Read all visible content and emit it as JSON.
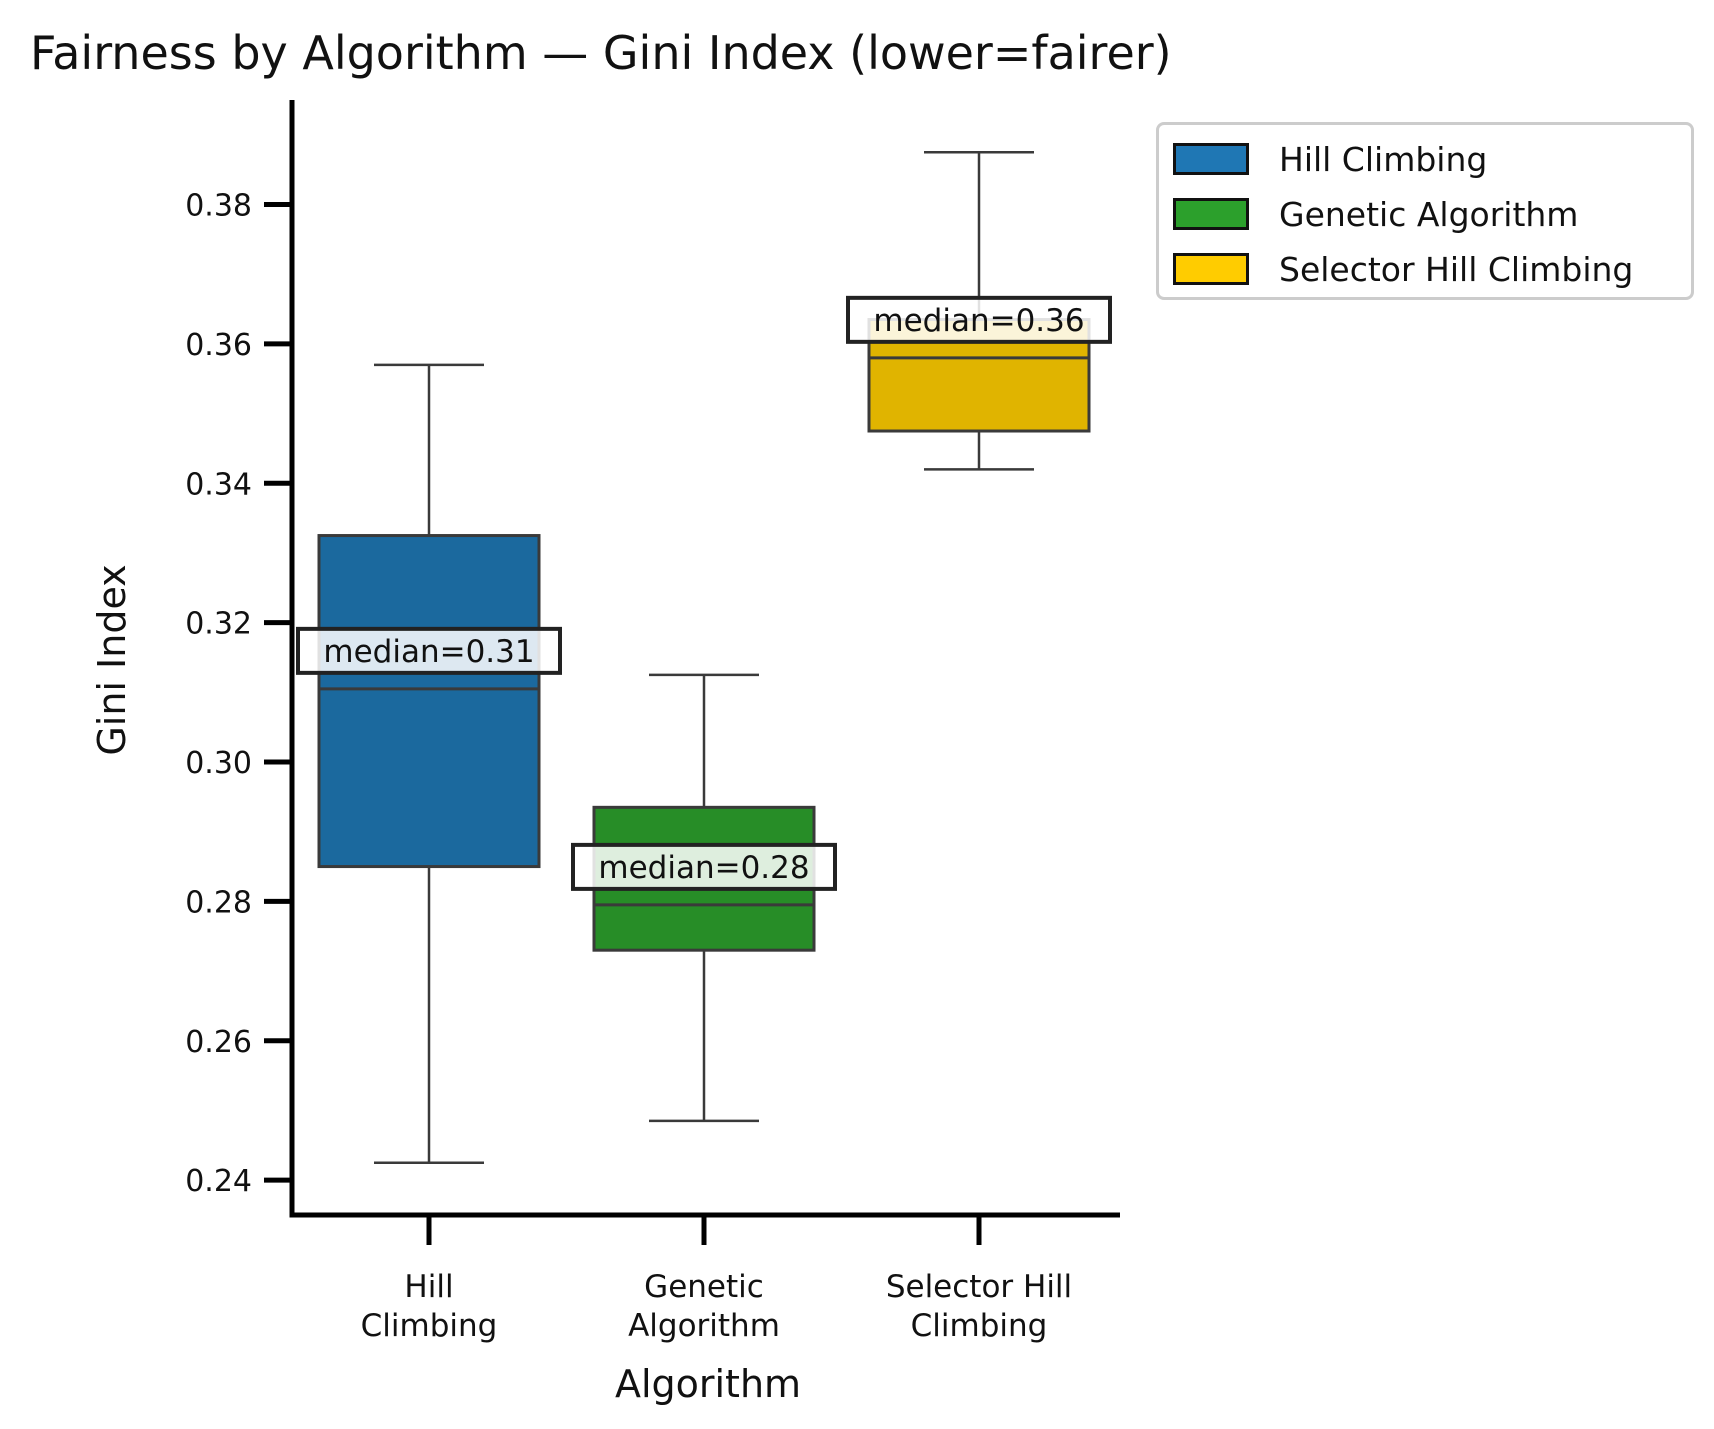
{
  "chart_data": {
    "type": "box",
    "title": "Fairness by Algorithm — Gini Index (lower=fairer)",
    "xlabel": "Algorithm",
    "ylabel": "Gini Index",
    "ylim": [
      0.235,
      0.395
    ],
    "yticks": [
      0.24,
      0.26,
      0.28,
      0.3,
      0.32,
      0.34,
      0.36,
      0.38
    ],
    "ytick_labels": [
      "0.24",
      "0.26",
      "0.28",
      "0.30",
      "0.32",
      "0.34",
      "0.36",
      "0.38"
    ],
    "grid": false,
    "legend_position": "outside top-right",
    "categories": [
      {
        "label_lines": [
          "Hill",
          "Climbing"
        ],
        "legend": "Hill Climbing",
        "color": "#1f77b4",
        "whisker_low": 0.2425,
        "q1": 0.285,
        "median": 0.3105,
        "q3": 0.3325,
        "whisker_high": 0.357,
        "annotation": "median=0.31"
      },
      {
        "label_lines": [
          "Genetic",
          "Algorithm"
        ],
        "legend": "Genetic Algorithm",
        "color": "#2ca02c",
        "whisker_low": 0.2485,
        "q1": 0.273,
        "median": 0.2795,
        "q3": 0.2935,
        "whisker_high": 0.3125,
        "annotation": "median=0.28"
      },
      {
        "label_lines": [
          "Selector Hill",
          "Climbing"
        ],
        "legend": "Selector Hill Climbing",
        "color": "#ffcc00",
        "whisker_low": 0.342,
        "q1": 0.3475,
        "median": 0.358,
        "q3": 0.3635,
        "whisker_high": 0.3875,
        "annotation": "median=0.36"
      }
    ]
  }
}
